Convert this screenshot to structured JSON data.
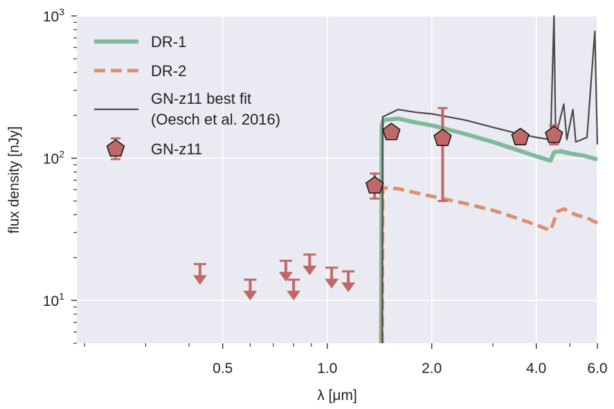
{
  "chart_data": {
    "type": "line",
    "xlabel": "λ [μm]",
    "ylabel": "flux density [nJy]",
    "x_scale": "log",
    "y_scale": "log",
    "xlim": [
      0.19,
      6.0
    ],
    "ylim": [
      5,
      1000
    ],
    "grid": true,
    "legend_position": "top-left",
    "x_ticks": [
      {
        "value": 0.5,
        "label": "0.5"
      },
      {
        "value": 1.0,
        "label": "1.0"
      },
      {
        "value": 2.0,
        "label": "2.0"
      },
      {
        "value": 4.0,
        "label": "4.0"
      },
      {
        "value": 6.0,
        "label": "6.0"
      }
    ],
    "y_ticks": [
      {
        "value": 10,
        "base": "10",
        "exp": "1"
      },
      {
        "value": 100,
        "base": "10",
        "exp": "2"
      },
      {
        "value": 1000,
        "base": "10",
        "exp": "3"
      }
    ],
    "series": [
      {
        "name": "DR-1",
        "color": "#81b99b",
        "style": "solid-thick",
        "points": [
          [
            1.43,
            5
          ],
          [
            1.435,
            170
          ],
          [
            1.45,
            185
          ],
          [
            1.6,
            190
          ],
          [
            1.8,
            178
          ],
          [
            2.0,
            170
          ],
          [
            2.5,
            148
          ],
          [
            3.0,
            130
          ],
          [
            3.5,
            115
          ],
          [
            4.0,
            103
          ],
          [
            4.4,
            96
          ],
          [
            4.5,
            110
          ],
          [
            4.7,
            112
          ],
          [
            5.0,
            108
          ],
          [
            5.5,
            104
          ],
          [
            6.0,
            98
          ]
        ]
      },
      {
        "name": "DR-2",
        "color": "#dd8e6e",
        "style": "dashed",
        "points": [
          [
            1.44,
            5
          ],
          [
            1.445,
            62
          ],
          [
            1.6,
            61
          ],
          [
            1.8,
            57
          ],
          [
            2.0,
            54
          ],
          [
            2.5,
            48
          ],
          [
            3.0,
            43
          ],
          [
            3.5,
            38
          ],
          [
            4.0,
            34
          ],
          [
            4.4,
            31
          ],
          [
            4.6,
            42
          ],
          [
            4.8,
            44
          ],
          [
            5.2,
            40
          ],
          [
            5.6,
            38
          ],
          [
            6.0,
            35
          ]
        ]
      },
      {
        "name": "GN-z11 best fit\n(Oesch et al. 2016)",
        "color": "#4a4a4a",
        "style": "solid-thin",
        "points": [
          [
            1.44,
            5
          ],
          [
            1.445,
            195
          ],
          [
            1.6,
            220
          ],
          [
            1.8,
            210
          ],
          [
            2.0,
            205
          ],
          [
            2.5,
            185
          ],
          [
            3.0,
            165
          ],
          [
            3.5,
            150
          ],
          [
            4.0,
            140
          ],
          [
            4.4,
            135
          ],
          [
            4.5,
            1000
          ],
          [
            4.55,
            140
          ],
          [
            4.8,
            240
          ],
          [
            4.9,
            135
          ],
          [
            5.1,
            220
          ],
          [
            5.2,
            130
          ],
          [
            5.6,
            140
          ],
          [
            5.9,
            780
          ],
          [
            6.0,
            125
          ]
        ]
      }
    ],
    "detections": {
      "name": "GN-z11",
      "color": "#c06868",
      "points": [
        {
          "x": 1.37,
          "y": 64,
          "err_low": 52,
          "err_high": 78
        },
        {
          "x": 1.53,
          "y": 152,
          "err_low": 152,
          "err_high": 152
        },
        {
          "x": 2.15,
          "y": 138,
          "err_low": 50,
          "err_high": 225
        },
        {
          "x": 3.6,
          "y": 140,
          "err_low": 125,
          "err_high": 155
        },
        {
          "x": 4.5,
          "y": 145,
          "err_low": 125,
          "err_high": 170
        }
      ]
    },
    "upper_limits": {
      "color": "#c06868",
      "points": [
        {
          "x": 0.43,
          "y": 18
        },
        {
          "x": 0.6,
          "y": 14
        },
        {
          "x": 0.76,
          "y": 19
        },
        {
          "x": 0.8,
          "y": 14
        },
        {
          "x": 0.89,
          "y": 21
        },
        {
          "x": 1.03,
          "y": 17
        },
        {
          "x": 1.15,
          "y": 16
        }
      ]
    }
  }
}
